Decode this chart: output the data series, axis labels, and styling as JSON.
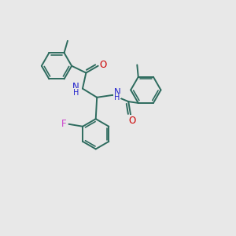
{
  "bg_color": "#e8e8e8",
  "bond_color": "#2d6b5e",
  "atom_colors": {
    "O": "#cc0000",
    "N": "#2222cc",
    "F": "#cc44cc",
    "C": "#2d6b5e",
    "H": "#2d6b5e"
  },
  "lw": 1.4,
  "fs": 8.5,
  "r": 0.65,
  "xlim": [
    0,
    10
  ],
  "ylim": [
    0,
    10
  ]
}
